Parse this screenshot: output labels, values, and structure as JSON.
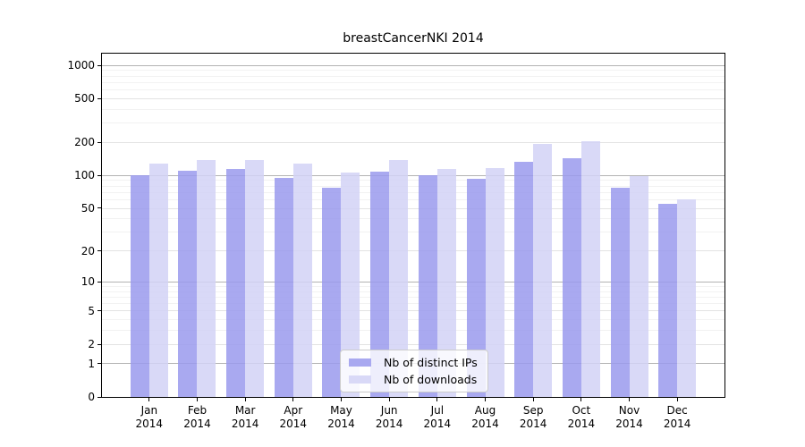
{
  "chart_data": {
    "type": "bar",
    "title": "breastCancerNKI 2014",
    "categories": [
      "Jan",
      "Feb",
      "Mar",
      "Apr",
      "May",
      "Jun",
      "Jul",
      "Aug",
      "Sep",
      "Oct",
      "Nov",
      "Dec"
    ],
    "year": "2014",
    "series": [
      {
        "name": "Nb of distinct IPs",
        "color": "#a9a9f0",
        "values": [
          100,
          110,
          114,
          95,
          77,
          108,
          100,
          94,
          134,
          144,
          77,
          55
        ]
      },
      {
        "name": "Nb of downloads",
        "color": "#d9d9f7",
        "values": [
          129,
          139,
          139,
          128,
          106,
          139,
          115,
          117,
          194,
          207,
          99,
          61
        ]
      }
    ],
    "yscale": "log1p",
    "y_ticks": [
      0,
      1,
      2,
      5,
      10,
      20,
      50,
      100,
      200,
      500,
      1000
    ],
    "ylim": [
      0,
      1280
    ],
    "grid": true,
    "legend_position": "lower center"
  },
  "colors": {
    "background": "#ffffff",
    "axis_frame": "#000000",
    "grid_decade": "#b3b3b3",
    "grid_major": "#e3e3e3",
    "grid_minor": "#f2f2f2",
    "tick_label": "#000000",
    "legend_border": "#cccccc",
    "legend_background": "rgba(255,255,255,0.8)"
  }
}
